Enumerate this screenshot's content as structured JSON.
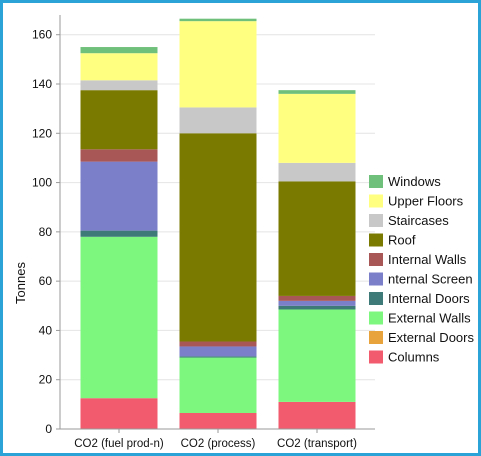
{
  "chart_data": {
    "type": "bar",
    "stacked": true,
    "ylabel": "Tonnes",
    "xlabel": "",
    "ylim": [
      0,
      168
    ],
    "yticks": [
      0,
      20,
      40,
      60,
      80,
      100,
      120,
      140,
      160
    ],
    "grid": true,
    "legend_position": "right",
    "categories": [
      "CO2 (fuel prod-n)",
      "CO2 (process)",
      "CO2 (transport)"
    ],
    "series": [
      {
        "name": "Columns",
        "color": "#f25a6e",
        "values": [
          12.5,
          6.5,
          11
        ]
      },
      {
        "name": "External Doors",
        "color": "#e8a33c",
        "values": [
          0,
          0,
          0
        ]
      },
      {
        "name": "External Walls",
        "color": "#7df77d",
        "values": [
          65.5,
          22.5,
          37.5
        ]
      },
      {
        "name": "Internal Doors",
        "color": "#3d7a78",
        "values": [
          2.5,
          0.5,
          1.5
        ]
      },
      {
        "name": "nternal Screen",
        "color": "#7b7ec8",
        "values": [
          28,
          4,
          2
        ]
      },
      {
        "name": "Internal Walls",
        "color": "#a95656",
        "values": [
          5,
          2,
          2
        ]
      },
      {
        "name": "Roof",
        "color": "#7a7a00",
        "values": [
          24,
          84.5,
          46.5
        ]
      },
      {
        "name": "Staircases",
        "color": "#c8c8c8",
        "values": [
          4,
          10.5,
          7.5
        ]
      },
      {
        "name": "Upper Floors",
        "color": "#ffff80",
        "values": [
          11,
          35,
          28
        ]
      },
      {
        "name": "Windows",
        "color": "#6fc07a",
        "values": [
          2.5,
          1,
          1.5
        ]
      }
    ],
    "legend_order": [
      "Windows",
      "Upper Floors",
      "Staircases",
      "Roof",
      "Internal Walls",
      "nternal Screen",
      "Internal Doors",
      "External Walls",
      "External Doors",
      "Columns"
    ]
  }
}
